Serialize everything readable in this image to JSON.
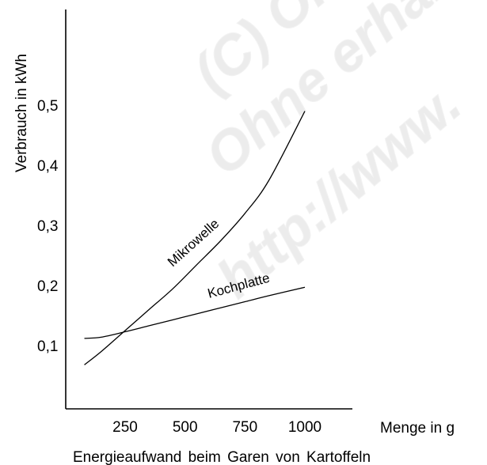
{
  "watermark": {
    "lines": [
      "(C) Original",
      "Ohne erhalt",
      "http://www."
    ]
  },
  "chart_data": {
    "type": "line",
    "title": "",
    "caption": "Energieaufwand beim Garen von Kartoffeln",
    "xlabel": "Menge in g",
    "ylabel": "Verbrauch in kWh",
    "xlim": [
      0,
      1000
    ],
    "ylim": [
      0.05,
      0.5
    ],
    "x_ticks": [
      250,
      500,
      750,
      1000
    ],
    "x_tick_labels": [
      "250",
      "500",
      "750",
      "1000"
    ],
    "y_ticks": [
      0.1,
      0.2,
      0.3,
      0.4,
      0.5
    ],
    "y_tick_labels": [
      "0,1",
      "0,2",
      "0,3",
      "0,4",
      "0,5"
    ],
    "grid": false,
    "legend": "none (series labelled directly on lines)",
    "series": [
      {
        "name": "Mikrowelle",
        "color": "#000000",
        "x": [
          80,
          150,
          250,
          350,
          450,
          550,
          650,
          750,
          850,
          1000
        ],
        "y": [
          0.068,
          0.09,
          0.125,
          0.16,
          0.195,
          0.235,
          0.275,
          0.32,
          0.375,
          0.49
        ]
      },
      {
        "name": "Kochplatte",
        "color": "#000000",
        "x": [
          80,
          150,
          250,
          350,
          450,
          550,
          650,
          750,
          850,
          1000
        ],
        "y": [
          0.112,
          0.114,
          0.123,
          0.133,
          0.143,
          0.153,
          0.163,
          0.173,
          0.183,
          0.197
        ]
      }
    ]
  }
}
